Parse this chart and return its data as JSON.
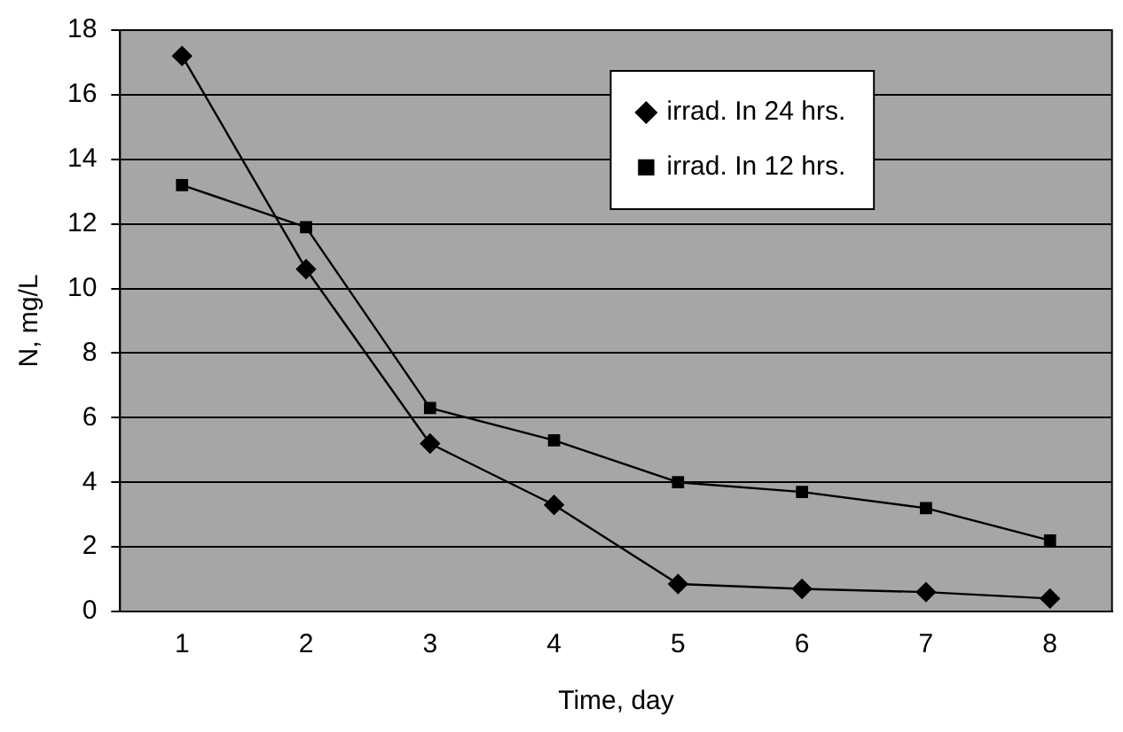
{
  "chart_data": {
    "type": "line",
    "xlabel": "Time, day",
    "ylabel": "N, mg/L",
    "categories": [
      "1",
      "2",
      "3",
      "4",
      "5",
      "6",
      "7",
      "8"
    ],
    "series": [
      {
        "name": "irrad. In 24 hrs.",
        "color": "#000000",
        "marker": "diamond",
        "values": [
          17.2,
          10.6,
          5.2,
          3.3,
          0.85,
          0.7,
          0.6,
          0.4
        ]
      },
      {
        "name": "irrad. In 12 hrs.",
        "color": "#000000",
        "marker": "square",
        "values": [
          13.2,
          11.9,
          6.3,
          5.3,
          4.0,
          3.7,
          3.2,
          2.2
        ]
      }
    ],
    "ylim": [
      0,
      18
    ],
    "yticks": [
      0,
      2,
      4,
      6,
      8,
      10,
      12,
      14,
      16,
      18
    ],
    "grid": "y",
    "legend": "top right",
    "line_style": "solid"
  }
}
